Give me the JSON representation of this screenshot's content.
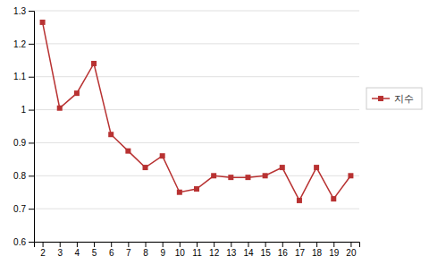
{
  "chart_data": {
    "type": "line",
    "x": [
      2,
      3,
      4,
      5,
      6,
      7,
      8,
      9,
      10,
      11,
      12,
      13,
      14,
      15,
      16,
      17,
      18,
      19,
      20
    ],
    "series": [
      {
        "name": "지수",
        "color": "#b83232",
        "marker": "square",
        "values": [
          1.265,
          1.005,
          1.05,
          1.14,
          0.925,
          0.875,
          0.825,
          0.86,
          0.75,
          0.76,
          0.8,
          0.795,
          0.795,
          0.8,
          0.825,
          0.725,
          0.825,
          0.73,
          0.8
        ]
      }
    ],
    "xlim": [
      1.5,
      20.5
    ],
    "xticks": [
      2,
      3,
      4,
      5,
      6,
      7,
      8,
      9,
      10,
      11,
      12,
      13,
      14,
      15,
      16,
      17,
      18,
      19,
      20
    ],
    "ylim": [
      0.6,
      1.3
    ],
    "yticks": [
      0.6,
      0.7,
      0.8,
      0.9,
      1,
      1.1,
      1.2,
      1.3
    ],
    "grid": true,
    "legend": "right"
  }
}
